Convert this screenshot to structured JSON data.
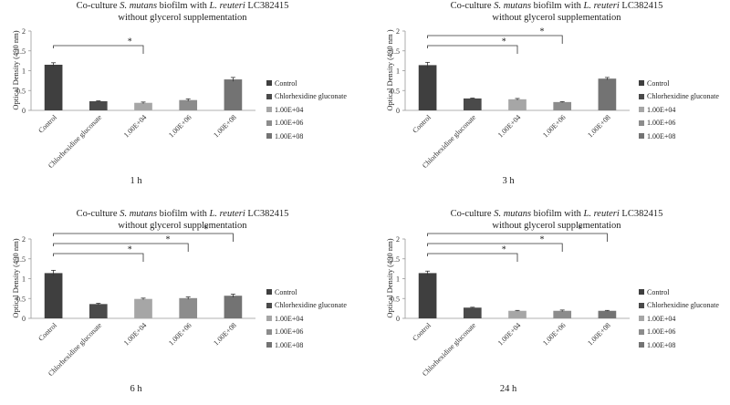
{
  "chart_data": [
    {
      "type": "bar",
      "title_line1_parts": [
        "Co-culture ",
        "S. mutans",
        " biofilm with ",
        "L. reuteri",
        " LC382415"
      ],
      "title_line2": "without glycerol supplementation",
      "ylabel": "Optical Density (490 nm)",
      "xlabel": "1 h",
      "ylim": [
        0,
        2
      ],
      "yticks": [
        "0",
        "0.5",
        "1",
        "1.5",
        "2"
      ],
      "categories": [
        "Control",
        "Chlorhexidine gluconate",
        "1.00E+04",
        "1.00E+06",
        "1.00E+08"
      ],
      "values": [
        1.15,
        0.23,
        0.19,
        0.26,
        0.78
      ],
      "errors": [
        0.05,
        0.01,
        0.02,
        0.03,
        0.05
      ],
      "significance": [
        {
          "from": "Control",
          "to": "1.00E+04",
          "label": "*"
        }
      ],
      "legend": [
        "Control",
        "Chlorhexidine gluconate",
        "1.00E+04",
        "1.00E+06",
        "1.00E+08"
      ],
      "colors": [
        "#3f3f3f",
        "#4a4a4a",
        "#a6a6a6",
        "#8c8c8c",
        "#737373"
      ],
      "grid": false,
      "legend_position": "right"
    },
    {
      "type": "bar",
      "title_line1_parts": [
        "Co-culture ",
        "S. mutans",
        " biofilm with ",
        "L. reuteri",
        " LC382415"
      ],
      "title_line2": "without glycerol supplementation",
      "ylabel": "Optical Density (490 nm )",
      "xlabel": "3 h",
      "ylim": [
        0,
        2
      ],
      "yticks": [
        "0",
        "0.5",
        "1",
        "1.5",
        "2"
      ],
      "categories": [
        "Control",
        "Chlorhexidine gluconate",
        "1.00E+04",
        "1.00E+06",
        "1.00E+08"
      ],
      "values": [
        1.14,
        0.3,
        0.28,
        0.21,
        0.8
      ],
      "errors": [
        0.07,
        0.01,
        0.02,
        0.01,
        0.03
      ],
      "significance": [
        {
          "from": "Control",
          "to": "1.00E+04",
          "label": "*"
        },
        {
          "from": "Control",
          "to": "1.00E+06",
          "label": "*"
        }
      ],
      "legend": [
        "Control",
        "Chlorhexidine gluconate",
        "1.00E+04",
        "1.00E+06",
        "1.00E+08"
      ],
      "colors": [
        "#3f3f3f",
        "#4a4a4a",
        "#a6a6a6",
        "#8c8c8c",
        "#737373"
      ],
      "grid": false,
      "legend_position": "right"
    },
    {
      "type": "bar",
      "title_line1_parts": [
        "Co-culture ",
        "S. mutans",
        " biofilm with ",
        "L. reuteri",
        " LC382415"
      ],
      "title_line2": "without glycerol supplementation",
      "ylabel": "Optical Density (490 nm)",
      "xlabel": "6 h",
      "ylim": [
        0,
        2
      ],
      "yticks": [
        "0",
        "0.5",
        "1",
        "1.5",
        "2"
      ],
      "categories": [
        "Control",
        "Chlorhexidine gluconate",
        "1.00E+04",
        "1.00E+06",
        "1.00E+08"
      ],
      "values": [
        1.14,
        0.36,
        0.49,
        0.51,
        0.57
      ],
      "errors": [
        0.07,
        0.02,
        0.02,
        0.03,
        0.04
      ],
      "significance": [
        {
          "from": "Control",
          "to": "1.00E+04",
          "label": "*"
        },
        {
          "from": "Control",
          "to": "1.00E+06",
          "label": "*"
        },
        {
          "from": "Control",
          "to": "1.00E+08",
          "label": "*"
        }
      ],
      "legend": [
        "Control",
        "Chlorhexidine gluconate",
        "1.00E+04",
        "1.00E+06",
        "1.00E+08"
      ],
      "colors": [
        "#3f3f3f",
        "#4a4a4a",
        "#a6a6a6",
        "#8c8c8c",
        "#737373"
      ],
      "grid": false,
      "legend_position": "right"
    },
    {
      "type": "bar",
      "title_line1_parts": [
        "Co-culture ",
        "S. mutans",
        " biofilm with ",
        "L. reuteri",
        " LC382415"
      ],
      "title_line2": "without glycerol supplementation",
      "ylabel": "Optical Density (490 nm)",
      "xlabel": "24 h",
      "ylim": [
        0,
        2
      ],
      "yticks": [
        "0",
        "0.5",
        "1",
        "1.5",
        "2"
      ],
      "categories": [
        "Control",
        "Chlorhexidine gluconate",
        "1.00E+04",
        "1.00E+06",
        "1.00E+08"
      ],
      "values": [
        1.14,
        0.27,
        0.19,
        0.19,
        0.19
      ],
      "errors": [
        0.05,
        0.01,
        0.01,
        0.02,
        0.01
      ],
      "significance": [
        {
          "from": "Control",
          "to": "1.00E+04",
          "label": "*"
        },
        {
          "from": "Control",
          "to": "1.00E+06",
          "label": "*"
        },
        {
          "from": "Control",
          "to": "1.00E+08",
          "label": "*"
        }
      ],
      "legend": [
        "Control",
        "Chlorhexidine gluconate",
        "1.00E+04",
        "1.00E+06",
        "1.00E+08"
      ],
      "colors": [
        "#3f3f3f",
        "#4a4a4a",
        "#a6a6a6",
        "#8c8c8c",
        "#737373"
      ],
      "grid": false,
      "legend_position": "right"
    }
  ]
}
